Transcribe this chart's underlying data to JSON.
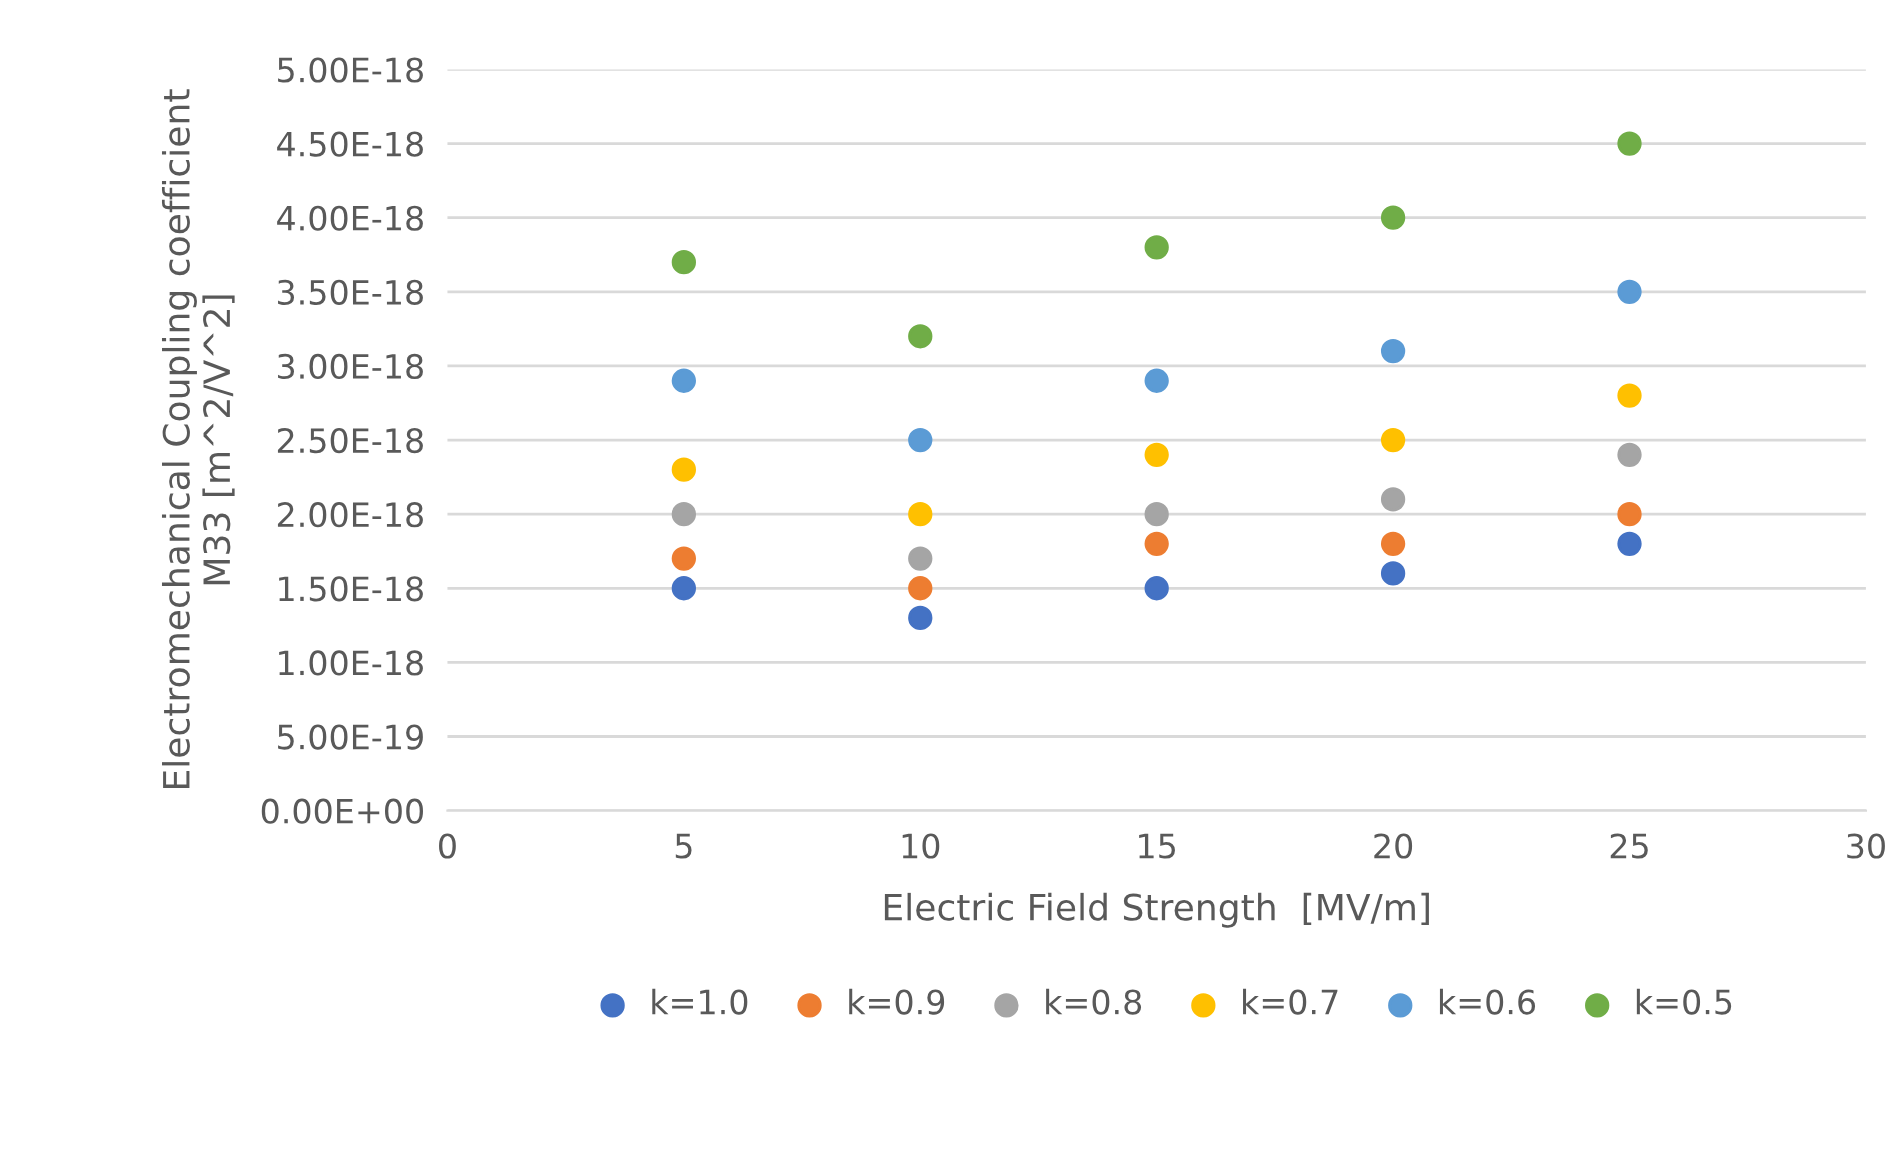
{
  "chart_data": {
    "type": "scatter",
    "xlabel": "Electric Field Strength  [MV/m]",
    "ylabel": "Electromechanical Coupling coefficient\nM33 [m^2/V^2]",
    "x": [
      5,
      10,
      15,
      20,
      25
    ],
    "series": [
      {
        "name": "k=1.0",
        "color": "#4472c4",
        "values": [
          1.5e-18,
          1.3e-18,
          1.5e-18,
          1.6e-18,
          1.8e-18
        ]
      },
      {
        "name": "k=0.9",
        "color": "#ed7d31",
        "values": [
          1.7e-18,
          1.5e-18,
          1.8e-18,
          1.8e-18,
          2e-18
        ]
      },
      {
        "name": "k=0.8",
        "color": "#a5a5a5",
        "values": [
          2e-18,
          1.7e-18,
          2e-18,
          2.1e-18,
          2.4e-18
        ]
      },
      {
        "name": "k=0.7",
        "color": "#ffc000",
        "values": [
          2.3e-18,
          2e-18,
          2.4e-18,
          2.5e-18,
          2.8e-18
        ]
      },
      {
        "name": "k=0.6",
        "color": "#5b9bd5",
        "values": [
          2.9e-18,
          2.5e-18,
          2.9e-18,
          3.1e-18,
          3.5e-18
        ]
      },
      {
        "name": "k=0.5",
        "color": "#70ad47",
        "values": [
          3.7e-18,
          3.2e-18,
          3.8e-18,
          4e-18,
          4.5e-18
        ]
      }
    ],
    "xlim": [
      0,
      30
    ],
    "xticks": [
      0,
      5,
      10,
      15,
      20,
      25,
      30
    ],
    "ylim": [
      0,
      5e-18
    ],
    "yticks": [
      {
        "value": 0,
        "label": "0.00E+00"
      },
      {
        "value": 5e-19,
        "label": "5.00E-19"
      },
      {
        "value": 1e-18,
        "label": "1.00E-18"
      },
      {
        "value": 1.5e-18,
        "label": "1.50E-18"
      },
      {
        "value": 2e-18,
        "label": "2.00E-18"
      },
      {
        "value": 2.5e-18,
        "label": "2.50E-18"
      },
      {
        "value": 3e-18,
        "label": "3.00E-18"
      },
      {
        "value": 3.5e-18,
        "label": "3.50E-18"
      },
      {
        "value": 4e-18,
        "label": "4.00E-18"
      },
      {
        "value": 4.5e-18,
        "label": "4.50E-18"
      },
      {
        "value": 5e-18,
        "label": "5.00E-18"
      }
    ],
    "grid": "y",
    "legend": "bottom",
    "marker": "circle"
  }
}
